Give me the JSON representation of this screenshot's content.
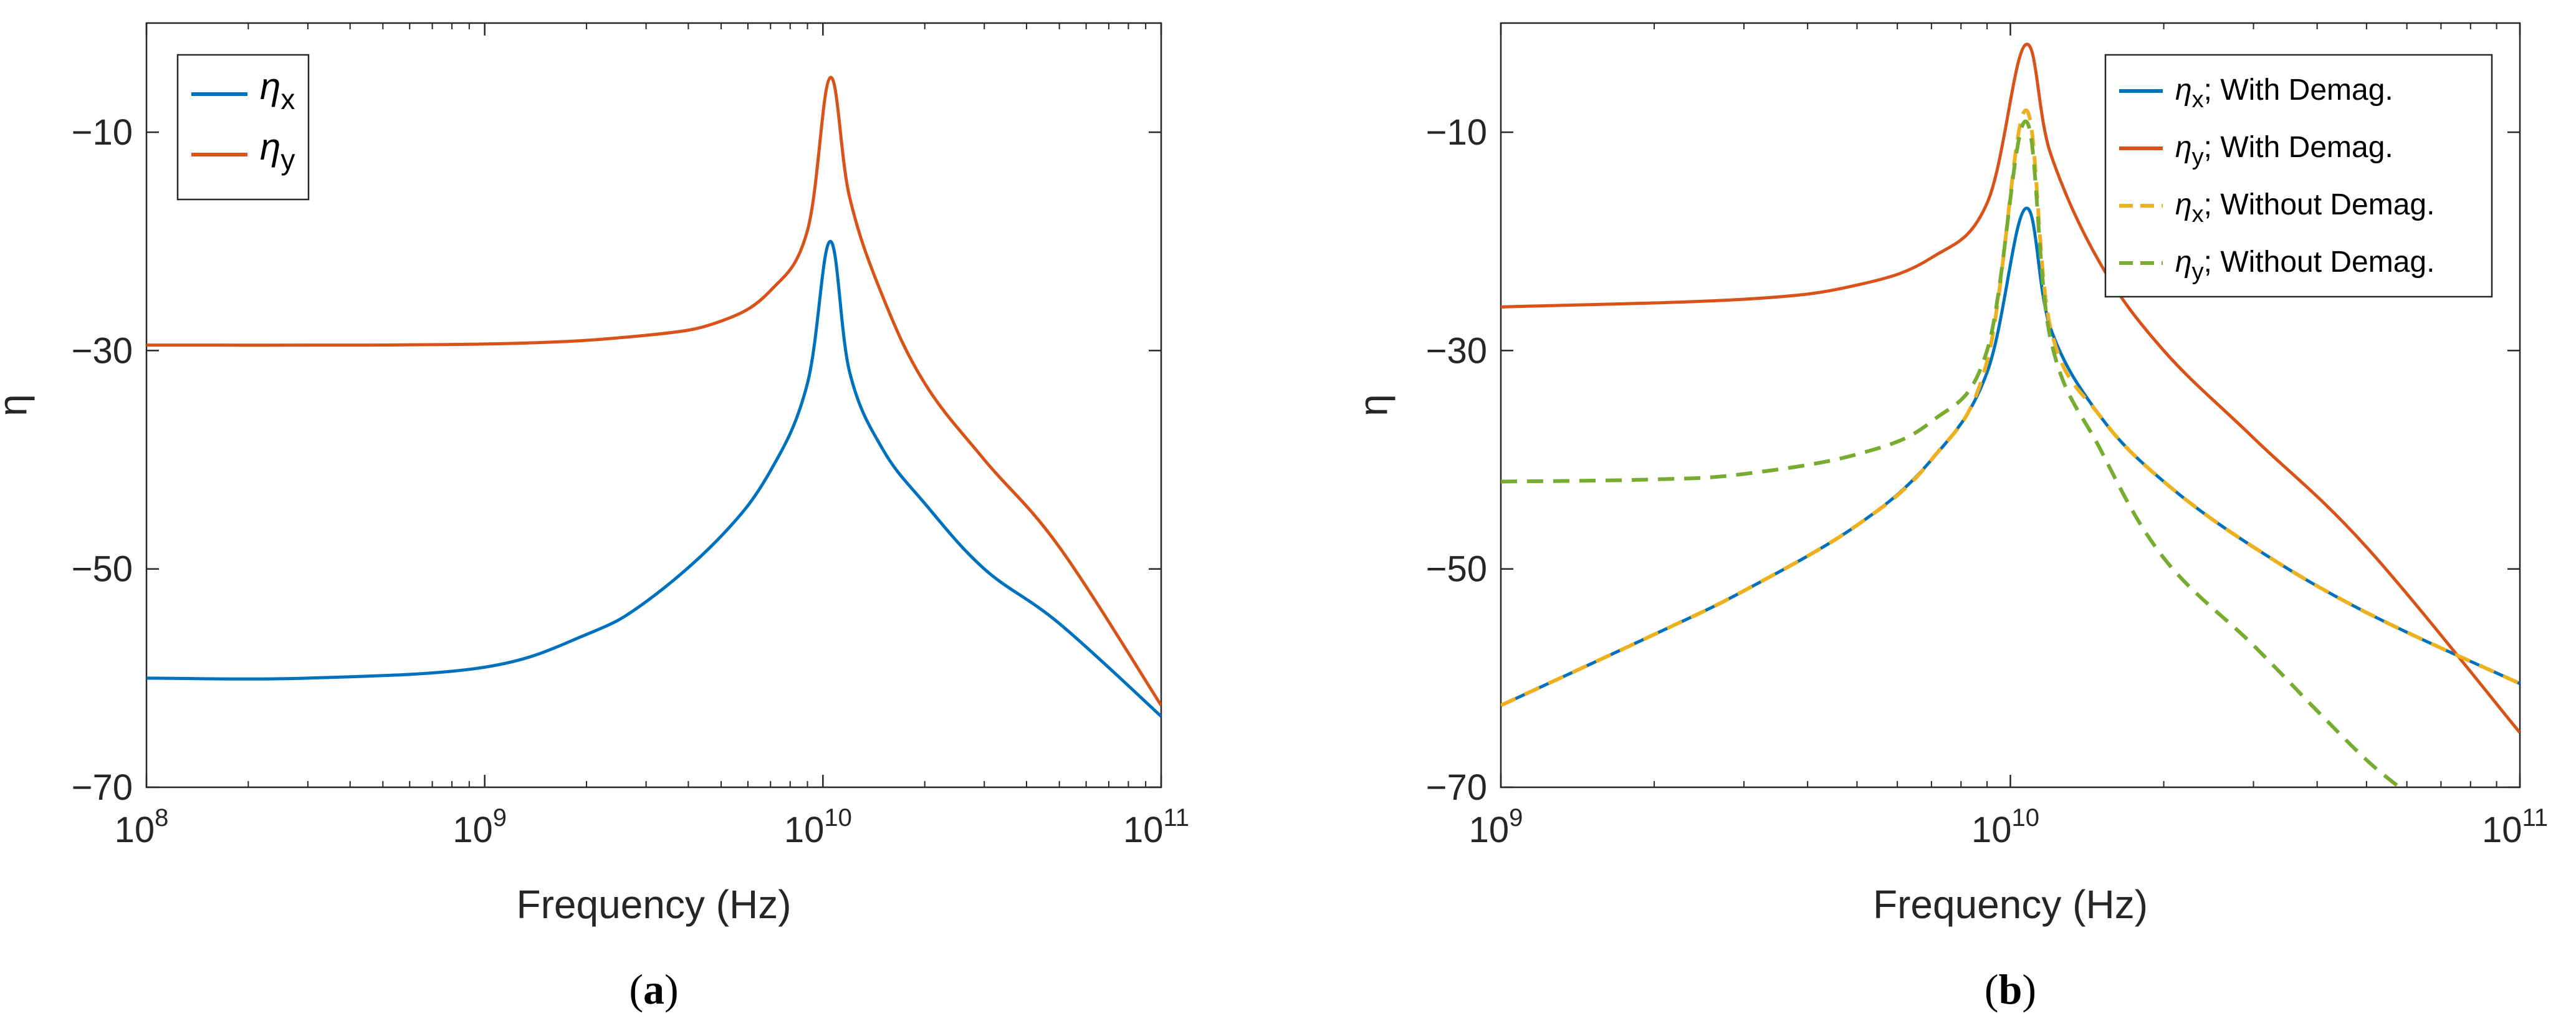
{
  "chart_data": [
    {
      "panel": "(a)",
      "panel_letter": "a",
      "type": "line",
      "xlabel": "Frequency (Hz)",
      "ylabel": "η",
      "xscale": "log",
      "xlim": [
        100000000,
        100000000000
      ],
      "ylim": [
        -70,
        0
      ],
      "xticks": [
        {
          "base": "10",
          "exp": "8"
        },
        {
          "base": "10",
          "exp": "9"
        },
        {
          "base": "10",
          "exp": "10"
        },
        {
          "base": "10",
          "exp": "11"
        }
      ],
      "yticks": [
        "-70",
        "-50",
        "-30",
        "-10"
      ],
      "ytick_values": [
        -70,
        -50,
        -30,
        -10
      ],
      "grid": false,
      "legend": "top-left",
      "series": [
        {
          "name_symbol": "η",
          "name_sub": "x",
          "color": "#0072BD",
          "style": "solid",
          "x": [
            100000000.0,
            300000000.0,
            1000000000.0,
            2000000000.0,
            3000000000.0,
            5000000000.0,
            7000000000.0,
            9000000000.0,
            10500000000.0,
            12000000000.0,
            15000000000.0,
            20000000000.0,
            30000000000.0,
            50000000000.0,
            100000000000.0
          ],
          "y": [
            -60,
            -60,
            -59,
            -56,
            -53,
            -47,
            -41,
            -33,
            -20,
            -32,
            -39,
            -44,
            -50,
            -55,
            -63.5
          ]
        },
        {
          "name_symbol": "η",
          "name_sub": "y",
          "color": "#D95319",
          "style": "solid",
          "x": [
            100000000.0,
            1000000000.0,
            3000000000.0,
            5000000000.0,
            7000000000.0,
            9000000000.0,
            10500000000.0,
            12000000000.0,
            15000000000.0,
            20000000000.0,
            30000000000.0,
            50000000000.0,
            100000000000.0
          ],
          "y": [
            -29.5,
            -29.4,
            -28.6,
            -27.3,
            -24.5,
            -19,
            -5,
            -16,
            -25,
            -33,
            -40,
            -48,
            -62.5
          ]
        }
      ]
    },
    {
      "panel": "(b)",
      "panel_letter": "b",
      "type": "line",
      "xlabel": "Frequency (Hz)",
      "ylabel": "η",
      "xscale": "log",
      "xlim": [
        1000000000,
        100000000000
      ],
      "ylim": [
        -70,
        0
      ],
      "xticks": [
        {
          "base": "10",
          "exp": "9"
        },
        {
          "base": "10",
          "exp": "10"
        },
        {
          "base": "10",
          "exp": "11"
        }
      ],
      "yticks": [
        "-70",
        "-50",
        "-30",
        "-10"
      ],
      "ytick_values": [
        -70,
        -50,
        -30,
        -10
      ],
      "grid": false,
      "legend": "top-right",
      "series": [
        {
          "name_symbol": "η",
          "name_sub": "x",
          "name_suffix": "; With Demag.",
          "color": "#0072BD",
          "style": "solid",
          "x": [
            1000000000.0,
            2000000000.0,
            3000000000.0,
            5000000000.0,
            7000000000.0,
            9000000000.0,
            10700000000.0,
            12000000000.0,
            15000000000.0,
            20000000000.0,
            30000000000.0,
            50000000000.0,
            100000000000.0
          ],
          "y": [
            -62.5,
            -56,
            -52,
            -46,
            -40,
            -32,
            -17,
            -28,
            -36,
            -42,
            -48,
            -54,
            -60.5
          ]
        },
        {
          "name_symbol": "η",
          "name_sub": "y",
          "name_suffix": "; With Demag.",
          "color": "#D95319",
          "style": "solid",
          "x": [
            1000000000.0,
            3000000000.0,
            5000000000.0,
            7000000000.0,
            9000000000.0,
            10700000000.0,
            12000000000.0,
            15000000000.0,
            20000000000.0,
            30000000000.0,
            50000000000.0,
            100000000000.0
          ],
          "y": [
            -26,
            -25.3,
            -24,
            -21.5,
            -16.5,
            -2,
            -12,
            -22,
            -30,
            -38,
            -48,
            -65
          ]
        },
        {
          "name_symbol": "η",
          "name_sub": "x",
          "name_suffix": "; Without Demag.",
          "color": "#EDB120",
          "style": "dashed",
          "x": [
            1000000000.0,
            2000000000.0,
            3000000000.0,
            5000000000.0,
            7000000000.0,
            9000000000.0,
            10700000000.0,
            12000000000.0,
            15000000000.0,
            20000000000.0,
            30000000000.0,
            50000000000.0,
            100000000000.0
          ],
          "y": [
            -62.5,
            -56,
            -52,
            -46,
            -40,
            -31,
            -8,
            -28,
            -36,
            -42,
            -48,
            -54,
            -60.5
          ]
        },
        {
          "name_symbol": "η",
          "name_sub": "y",
          "name_suffix": "; Without Demag.",
          "color": "#77AC30",
          "style": "dashed",
          "x": [
            1000000000.0,
            2000000000.0,
            3000000000.0,
            5000000000.0,
            7000000000.0,
            9000000000.0,
            10700000000.0,
            12000000000.0,
            15000000000.0,
            20000000000.0,
            30000000000.0,
            40000000000.0,
            50000000000.0,
            58000000000.0
          ],
          "y": [
            -42,
            -41.8,
            -41.3,
            -39.5,
            -36.5,
            -30,
            -9,
            -29,
            -39,
            -49,
            -57,
            -63,
            -67.5,
            -70
          ]
        }
      ]
    }
  ]
}
